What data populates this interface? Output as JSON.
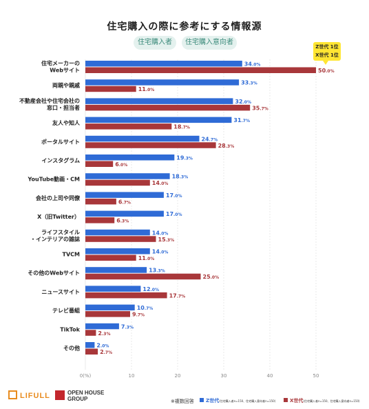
{
  "header": {
    "title": "住宅購入の際に参考にする情報源",
    "pill_buyer": "住宅購入者",
    "pill_intender": "住宅購入意向者"
  },
  "callout": {
    "line1": "Z世代 1位",
    "line2": "X世代 1位"
  },
  "footer": {
    "logo_lifull": "LIFULL",
    "logo_oh_line1": "OPEN HOUSE",
    "logo_oh_line2": "GROUP",
    "note": "※複数回答",
    "legend_z": "Z世代",
    "legend_z_detail": "(住宅購入者n=150、住宅購入意向者n=150)",
    "legend_x": "X世代",
    "legend_x_detail": "(住宅購入者n=150、住宅購入意向者n=150)"
  },
  "chart_data": {
    "type": "bar",
    "orientation": "horizontal",
    "categories": [
      [
        "住宅メーカーの",
        "Webサイト"
      ],
      [
        "両親や親戚"
      ],
      [
        "不動産会社や住宅会社の",
        "窓口・担当者"
      ],
      [
        "友人や知人"
      ],
      [
        "ポータルサイト"
      ],
      [
        "インスタグラム"
      ],
      [
        "YouTube動画・CM"
      ],
      [
        "会社の上司や同僚"
      ],
      [
        "X（旧Twitter）"
      ],
      [
        "ライフスタイル",
        "・インテリアの雑誌"
      ],
      [
        "TVCM"
      ],
      [
        "その他のWebサイト"
      ],
      [
        "ニュースサイト"
      ],
      [
        "テレビ番組"
      ],
      [
        "TikTok"
      ],
      [
        "その他"
      ]
    ],
    "series": [
      {
        "name": "Z世代",
        "color": "#2f6bd6",
        "values": [
          34.0,
          33.3,
          32.0,
          31.7,
          24.7,
          19.3,
          18.3,
          17.0,
          17.0,
          14.0,
          14.0,
          13.3,
          12.0,
          10.7,
          7.3,
          2.0
        ]
      },
      {
        "name": "X世代",
        "color": "#a8373a",
        "values": [
          50.0,
          11.0,
          35.7,
          18.7,
          28.3,
          6.0,
          14.0,
          6.7,
          6.3,
          15.3,
          11.0,
          25.0,
          17.7,
          9.7,
          2.3,
          2.7
        ]
      }
    ],
    "x_ticks": [
      "0(%)",
      "10",
      "20",
      "30",
      "40",
      "50"
    ],
    "xlim": [
      0,
      50
    ],
    "grid": true,
    "legend": "bottom-right"
  }
}
